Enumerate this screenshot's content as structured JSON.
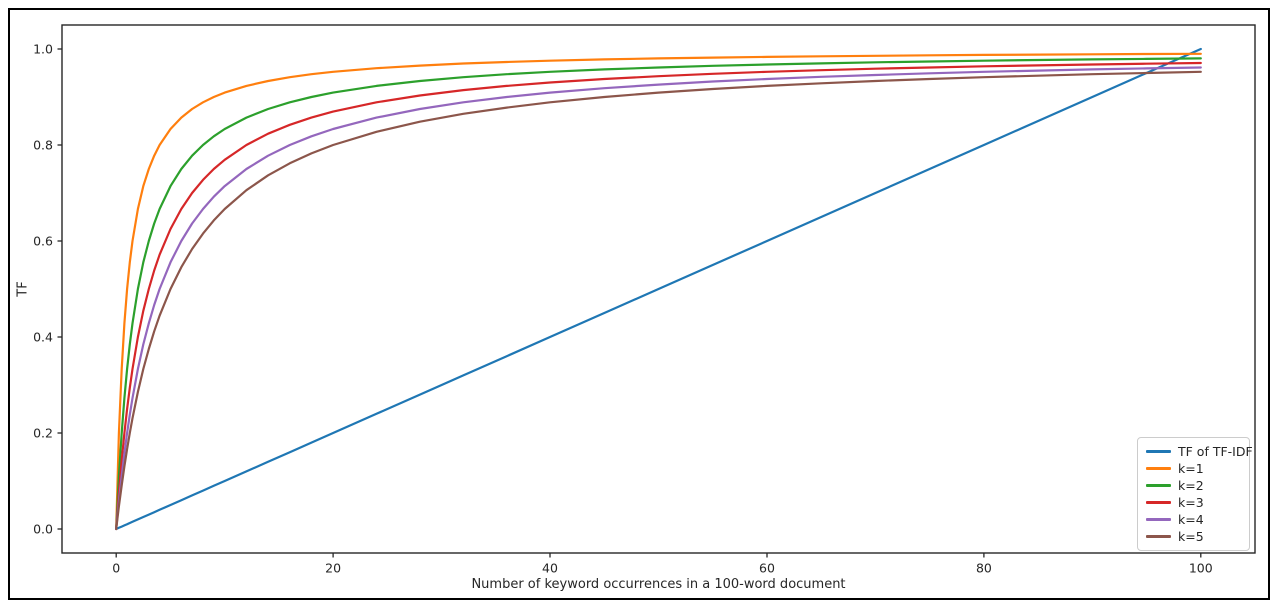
{
  "figure": {
    "background_color": "#ffffff",
    "border_color": "#000000",
    "text_color": "#262626",
    "spine_color": "#262626"
  },
  "chart_data": {
    "type": "line",
    "title": "",
    "xlabel": "Number of keyword occurrences in a 100-word document",
    "ylabel": "TF",
    "xlim": [
      -5,
      105
    ],
    "ylim": [
      -0.05,
      1.05
    ],
    "grid": false,
    "legend_position": "lower right",
    "xticks": [
      {
        "v": 0,
        "label": "0"
      },
      {
        "v": 20,
        "label": "20"
      },
      {
        "v": 40,
        "label": "40"
      },
      {
        "v": 60,
        "label": "60"
      },
      {
        "v": 80,
        "label": "80"
      },
      {
        "v": 100,
        "label": "100"
      }
    ],
    "yticks": [
      {
        "v": 0.0,
        "label": "0.0"
      },
      {
        "v": 0.2,
        "label": "0.2"
      },
      {
        "v": 0.4,
        "label": "0.4"
      },
      {
        "v": 0.6,
        "label": "0.6"
      },
      {
        "v": 0.8,
        "label": "0.8"
      },
      {
        "v": 1.0,
        "label": "1.0"
      }
    ],
    "x": [
      0,
      0.25,
      0.5,
      0.75,
      1,
      1.25,
      1.5,
      2,
      2.5,
      3,
      3.5,
      4,
      5,
      6,
      7,
      8,
      9,
      10,
      12,
      14,
      16,
      18,
      20,
      24,
      28,
      32,
      36,
      40,
      45,
      50,
      55,
      60,
      65,
      70,
      75,
      80,
      85,
      90,
      95,
      100
    ],
    "series": [
      {
        "name": "TF of TF-IDF",
        "color": "#1f77b4",
        "formula": "TF = x / 100",
        "values": [
          0,
          0.0025,
          0.005,
          0.0075,
          0.01,
          0.0125,
          0.015,
          0.02,
          0.025,
          0.03,
          0.035,
          0.04,
          0.05,
          0.06,
          0.07,
          0.08,
          0.09,
          0.1,
          0.12,
          0.14,
          0.16,
          0.18,
          0.2,
          0.24,
          0.28,
          0.32,
          0.36,
          0.4,
          0.45,
          0.5,
          0.55,
          0.6,
          0.65,
          0.7,
          0.75,
          0.8,
          0.85,
          0.9,
          0.95,
          1
        ]
      },
      {
        "name": "k=1",
        "color": "#ff7f0e",
        "formula": "TF = x / (x + 1)",
        "values": [
          0,
          0.2,
          0.3333,
          0.4286,
          0.5,
          0.5556,
          0.6,
          0.6667,
          0.7143,
          0.75,
          0.7778,
          0.8,
          0.8333,
          0.8571,
          0.875,
          0.8889,
          0.9,
          0.9091,
          0.9231,
          0.9333,
          0.9412,
          0.9474,
          0.9524,
          0.96,
          0.9655,
          0.9697,
          0.973,
          0.9756,
          0.9783,
          0.9804,
          0.9821,
          0.9836,
          0.9848,
          0.9859,
          0.9868,
          0.9877,
          0.9884,
          0.989,
          0.9896,
          0.9901
        ]
      },
      {
        "name": "k=2",
        "color": "#2ca02c",
        "formula": "TF = x / (x + 2)",
        "values": [
          0,
          0.1111,
          0.2,
          0.2727,
          0.3333,
          0.3846,
          0.4286,
          0.5,
          0.5556,
          0.6,
          0.6364,
          0.6667,
          0.7143,
          0.75,
          0.7778,
          0.8,
          0.8182,
          0.8333,
          0.8571,
          0.875,
          0.8889,
          0.9,
          0.9091,
          0.9231,
          0.9333,
          0.9412,
          0.9474,
          0.9524,
          0.9574,
          0.9615,
          0.9649,
          0.9677,
          0.9701,
          0.9722,
          0.974,
          0.9756,
          0.977,
          0.9783,
          0.9794,
          0.9804
        ]
      },
      {
        "name": "k=3",
        "color": "#d62728",
        "formula": "TF = x / (x + 3)",
        "values": [
          0,
          0.0769,
          0.1429,
          0.2,
          0.25,
          0.2941,
          0.3333,
          0.4,
          0.4545,
          0.5,
          0.5385,
          0.5714,
          0.625,
          0.6667,
          0.7,
          0.7273,
          0.75,
          0.7692,
          0.8,
          0.8235,
          0.8421,
          0.8571,
          0.8696,
          0.8889,
          0.9032,
          0.9143,
          0.9231,
          0.9302,
          0.9375,
          0.9434,
          0.9483,
          0.9524,
          0.9559,
          0.9589,
          0.9615,
          0.9639,
          0.9659,
          0.9677,
          0.9694,
          0.9709
        ]
      },
      {
        "name": "k=4",
        "color": "#9467bd",
        "formula": "TF = x / (x + 4)",
        "values": [
          0,
          0.0588,
          0.1111,
          0.1579,
          0.2,
          0.2381,
          0.2727,
          0.3333,
          0.3846,
          0.4286,
          0.4667,
          0.5,
          0.5556,
          0.6,
          0.6364,
          0.6667,
          0.6923,
          0.7143,
          0.75,
          0.7778,
          0.8,
          0.8182,
          0.8333,
          0.8571,
          0.875,
          0.8889,
          0.9,
          0.9091,
          0.9184,
          0.9259,
          0.9322,
          0.9375,
          0.942,
          0.9459,
          0.9494,
          0.9524,
          0.9551,
          0.9574,
          0.9596,
          0.9615
        ]
      },
      {
        "name": "k=5",
        "color": "#8c564b",
        "formula": "TF = x / (x + 5)",
        "values": [
          0,
          0.0476,
          0.0909,
          0.1304,
          0.1667,
          0.2,
          0.2308,
          0.2857,
          0.3333,
          0.375,
          0.4118,
          0.4444,
          0.5,
          0.5455,
          0.5833,
          0.6154,
          0.6429,
          0.6667,
          0.7059,
          0.7368,
          0.7619,
          0.7826,
          0.8,
          0.8276,
          0.8485,
          0.8649,
          0.878,
          0.8889,
          0.9,
          0.9091,
          0.9167,
          0.9231,
          0.9286,
          0.9333,
          0.9375,
          0.9412,
          0.9444,
          0.9474,
          0.95,
          0.9524
        ]
      }
    ]
  }
}
